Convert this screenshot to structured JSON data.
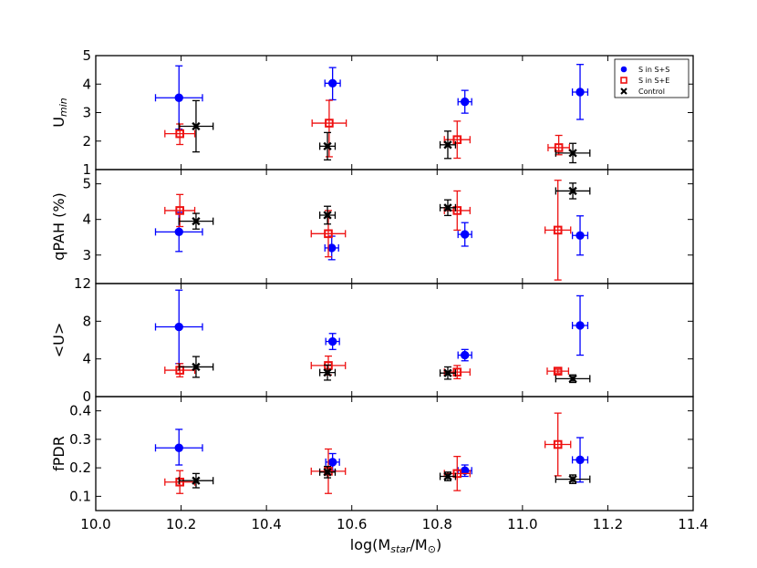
{
  "chart_data": {
    "type": "scatter",
    "xlabel_parts": [
      "log(M",
      "star",
      "/M",
      "⊙",
      ")"
    ],
    "xlim": [
      10.0,
      11.4
    ],
    "xticks": [
      10.0,
      10.2,
      10.4,
      10.6,
      10.8,
      11.0,
      11.2,
      11.4
    ],
    "xtick_labels": [
      "10.0",
      "10.2",
      "10.4",
      "10.6",
      "10.8",
      "11.0",
      "11.2",
      "11.4"
    ],
    "legend": {
      "placement": "top-right",
      "entries": [
        {
          "name": "S in S+S",
          "marker": "circle",
          "color": "#0000ff"
        },
        {
          "name": "S in S+E",
          "marker": "square-open",
          "color": "#ee1111"
        },
        {
          "name": "Control",
          "marker": "x",
          "color": "#000000"
        }
      ]
    },
    "panels": [
      {
        "id": "umin",
        "ylabel_main": "U",
        "ylabel_sub": "min",
        "ylim": [
          1,
          5
        ],
        "yticks": [
          1,
          2,
          3,
          4,
          5
        ],
        "ytick_labels": [
          "1",
          "2",
          "3",
          "4",
          "5"
        ],
        "series": [
          {
            "name": "S in S+S",
            "points": [
              {
                "x": 10.195,
                "y": 3.52,
                "xerr": 0.055,
                "yerr_lo": 1.1,
                "yerr_hi": 1.12
              },
              {
                "x": 10.555,
                "y": 4.03,
                "xerr": 0.018,
                "yerr_lo": 0.58,
                "yerr_hi": 0.55
              },
              {
                "x": 10.865,
                "y": 3.38,
                "xerr": 0.016,
                "yerr_lo": 0.4,
                "yerr_hi": 0.4
              },
              {
                "x": 11.135,
                "y": 3.72,
                "xerr": 0.018,
                "yerr_lo": 0.96,
                "yerr_hi": 0.97
              }
            ]
          },
          {
            "name": "S in S+E",
            "points": [
              {
                "x": 10.197,
                "y": 2.26,
                "xerr": 0.035,
                "yerr_lo": 0.38,
                "yerr_hi": 0.34
              },
              {
                "x": 10.547,
                "y": 2.63,
                "xerr": 0.04,
                "yerr_lo": 1.18,
                "yerr_hi": 0.8
              },
              {
                "x": 10.847,
                "y": 2.05,
                "xerr": 0.03,
                "yerr_lo": 0.65,
                "yerr_hi": 0.65
              },
              {
                "x": 11.085,
                "y": 1.77,
                "xerr": 0.025,
                "yerr_lo": 0.25,
                "yerr_hi": 0.43
              }
            ]
          },
          {
            "name": "Control",
            "points": [
              {
                "x": 10.235,
                "y": 2.52,
                "xerr": 0.04,
                "yerr_lo": 0.9,
                "yerr_hi": 0.9
              },
              {
                "x": 10.543,
                "y": 1.82,
                "xerr": 0.018,
                "yerr_lo": 0.48,
                "yerr_hi": 0.48
              },
              {
                "x": 10.825,
                "y": 1.87,
                "xerr": 0.018,
                "yerr_lo": 0.48,
                "yerr_hi": 0.48
              },
              {
                "x": 11.118,
                "y": 1.58,
                "xerr": 0.04,
                "yerr_lo": 0.34,
                "yerr_hi": 0.34
              }
            ]
          }
        ]
      },
      {
        "id": "qpah",
        "ylabel_main": "qPAH (%)",
        "ylim": [
          2.2,
          5.4
        ],
        "yticks": [
          3,
          4,
          5
        ],
        "ytick_labels": [
          "3",
          "4",
          "5"
        ],
        "series": [
          {
            "name": "S in S+S",
            "points": [
              {
                "x": 10.195,
                "y": 3.65,
                "xerr": 0.055,
                "yerr_lo": 0.55,
                "yerr_hi": 0.55
              },
              {
                "x": 10.553,
                "y": 3.2,
                "xerr": 0.016,
                "yerr_lo": 0.33,
                "yerr_hi": 0.33
              },
              {
                "x": 10.865,
                "y": 3.58,
                "xerr": 0.016,
                "yerr_lo": 0.33,
                "yerr_hi": 0.33
              },
              {
                "x": 11.135,
                "y": 3.55,
                "xerr": 0.018,
                "yerr_lo": 0.55,
                "yerr_hi": 0.55
              }
            ]
          },
          {
            "name": "S in S+E",
            "points": [
              {
                "x": 10.197,
                "y": 4.25,
                "xerr": 0.035,
                "yerr_lo": 0.45,
                "yerr_hi": 0.45
              },
              {
                "x": 10.545,
                "y": 3.6,
                "xerr": 0.04,
                "yerr_lo": 0.65,
                "yerr_hi": 0.65
              },
              {
                "x": 10.847,
                "y": 4.25,
                "xerr": 0.03,
                "yerr_lo": 0.55,
                "yerr_hi": 0.55
              },
              {
                "x": 11.083,
                "y": 3.7,
                "xerr": 0.03,
                "yerr_lo": 1.4,
                "yerr_hi": 1.4
              }
            ]
          },
          {
            "name": "Control",
            "points": [
              {
                "x": 10.235,
                "y": 3.95,
                "xerr": 0.04,
                "yerr_lo": 0.22,
                "yerr_hi": 0.22
              },
              {
                "x": 10.543,
                "y": 4.12,
                "xerr": 0.018,
                "yerr_lo": 0.25,
                "yerr_hi": 0.25
              },
              {
                "x": 10.825,
                "y": 4.33,
                "xerr": 0.018,
                "yerr_lo": 0.22,
                "yerr_hi": 0.22
              },
              {
                "x": 11.118,
                "y": 4.8,
                "xerr": 0.04,
                "yerr_lo": 0.22,
                "yerr_hi": 0.22
              }
            ]
          }
        ]
      },
      {
        "id": "umean",
        "ylabel_main": "<U>",
        "ylim": [
          0,
          12
        ],
        "yticks": [
          0,
          4,
          8,
          12
        ],
        "ytick_labels": [
          "0",
          "4",
          "8",
          "12"
        ],
        "series": [
          {
            "name": "S in S+S",
            "points": [
              {
                "x": 10.195,
                "y": 7.4,
                "xerr": 0.055,
                "yerr_lo": 3.9,
                "yerr_hi": 3.9
              },
              {
                "x": 10.555,
                "y": 5.85,
                "xerr": 0.016,
                "yerr_lo": 0.85,
                "yerr_hi": 0.85
              },
              {
                "x": 10.865,
                "y": 4.4,
                "xerr": 0.016,
                "yerr_lo": 0.6,
                "yerr_hi": 0.6
              },
              {
                "x": 11.135,
                "y": 7.55,
                "xerr": 0.018,
                "yerr_lo": 3.15,
                "yerr_hi": 3.15
              }
            ]
          },
          {
            "name": "S in S+E",
            "points": [
              {
                "x": 10.197,
                "y": 2.8,
                "xerr": 0.035,
                "yerr_lo": 0.7,
                "yerr_hi": 0.7
              },
              {
                "x": 10.545,
                "y": 3.3,
                "xerr": 0.04,
                "yerr_lo": 1.0,
                "yerr_hi": 1.0
              },
              {
                "x": 10.847,
                "y": 2.6,
                "xerr": 0.03,
                "yerr_lo": 0.7,
                "yerr_hi": 0.7
              },
              {
                "x": 11.083,
                "y": 2.7,
                "xerr": 0.025,
                "yerr_lo": 0.2,
                "yerr_hi": 0.2
              }
            ]
          },
          {
            "name": "Control",
            "points": [
              {
                "x": 10.235,
                "y": 3.15,
                "xerr": 0.04,
                "yerr_lo": 1.1,
                "yerr_hi": 1.1
              },
              {
                "x": 10.543,
                "y": 2.55,
                "xerr": 0.018,
                "yerr_lo": 0.8,
                "yerr_hi": 0.8
              },
              {
                "x": 10.825,
                "y": 2.5,
                "xerr": 0.018,
                "yerr_lo": 0.65,
                "yerr_hi": 0.65
              },
              {
                "x": 11.118,
                "y": 1.9,
                "xerr": 0.04,
                "yerr_lo": 0.4,
                "yerr_hi": 0.4
              }
            ]
          }
        ]
      },
      {
        "id": "fpdr",
        "ylabel_main": "fPDR",
        "ylim": [
          0.05,
          0.45
        ],
        "yticks": [
          0.1,
          0.2,
          0.3,
          0.4
        ],
        "ytick_labels": [
          "0.1",
          "0.2",
          "0.3",
          "0.4"
        ],
        "series": [
          {
            "name": "S in S+S",
            "points": [
              {
                "x": 10.195,
                "y": 0.27,
                "xerr": 0.055,
                "yerr_lo": 0.06,
                "yerr_hi": 0.065
              },
              {
                "x": 10.555,
                "y": 0.22,
                "xerr": 0.016,
                "yerr_lo": 0.03,
                "yerr_hi": 0.03
              },
              {
                "x": 10.865,
                "y": 0.19,
                "xerr": 0.016,
                "yerr_lo": 0.02,
                "yerr_hi": 0.02
              },
              {
                "x": 11.135,
                "y": 0.228,
                "xerr": 0.018,
                "yerr_lo": 0.078,
                "yerr_hi": 0.078
              }
            ]
          },
          {
            "name": "S in S+E",
            "points": [
              {
                "x": 10.197,
                "y": 0.15,
                "xerr": 0.035,
                "yerr_lo": 0.04,
                "yerr_hi": 0.04
              },
              {
                "x": 10.545,
                "y": 0.188,
                "xerr": 0.04,
                "yerr_lo": 0.078,
                "yerr_hi": 0.078
              },
              {
                "x": 10.847,
                "y": 0.18,
                "xerr": 0.03,
                "yerr_lo": 0.06,
                "yerr_hi": 0.06
              },
              {
                "x": 11.083,
                "y": 0.282,
                "xerr": 0.03,
                "yerr_lo": 0.11,
                "yerr_hi": 0.11
              }
            ]
          },
          {
            "name": "Control",
            "points": [
              {
                "x": 10.235,
                "y": 0.155,
                "xerr": 0.04,
                "yerr_lo": 0.025,
                "yerr_hi": 0.025
              },
              {
                "x": 10.543,
                "y": 0.185,
                "xerr": 0.018,
                "yerr_lo": 0.02,
                "yerr_hi": 0.02
              },
              {
                "x": 10.825,
                "y": 0.17,
                "xerr": 0.018,
                "yerr_lo": 0.015,
                "yerr_hi": 0.015
              },
              {
                "x": 11.118,
                "y": 0.16,
                "xerr": 0.04,
                "yerr_lo": 0.015,
                "yerr_hi": 0.015
              }
            ]
          }
        ]
      }
    ]
  }
}
